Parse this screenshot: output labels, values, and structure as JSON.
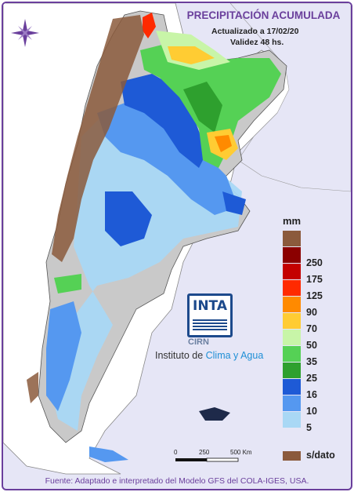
{
  "header": {
    "title": "PRECIPITACIÓN ACUMULADA",
    "updated": "Actualizado a 17/02/20",
    "validity": "Validez 48 hs."
  },
  "legend": {
    "unit": "mm",
    "items": [
      {
        "label": "250",
        "color": "#8b0000"
      },
      {
        "label": "175",
        "color": "#c40000"
      },
      {
        "label": "125",
        "color": "#ff2a00"
      },
      {
        "label": "90",
        "color": "#ff8a00"
      },
      {
        "label": "70",
        "color": "#ffcc33"
      },
      {
        "label": "50",
        "color": "#c8f5a8"
      },
      {
        "label": "35",
        "color": "#55d155"
      },
      {
        "label": "25",
        "color": "#2ea02e"
      },
      {
        "label": "16",
        "color": "#1e5ad6"
      },
      {
        "label": "10",
        "color": "#5598f0"
      },
      {
        "label": "5",
        "color": "#a9d8f5"
      }
    ],
    "no_data_color": "#8b5a3c",
    "no_data_label": "s/dato"
  },
  "logo": {
    "inta": "INTA",
    "cirn": "CIRN",
    "institute_prefix": "Instituto de ",
    "institute_highlight": "Clima y Agua"
  },
  "scale_bar": {
    "labels": [
      "0",
      "250",
      "500 Km"
    ]
  },
  "source": "Fuente: Adaptado e interpretado del Modelo GFS del COLA-IGES, USA."
}
